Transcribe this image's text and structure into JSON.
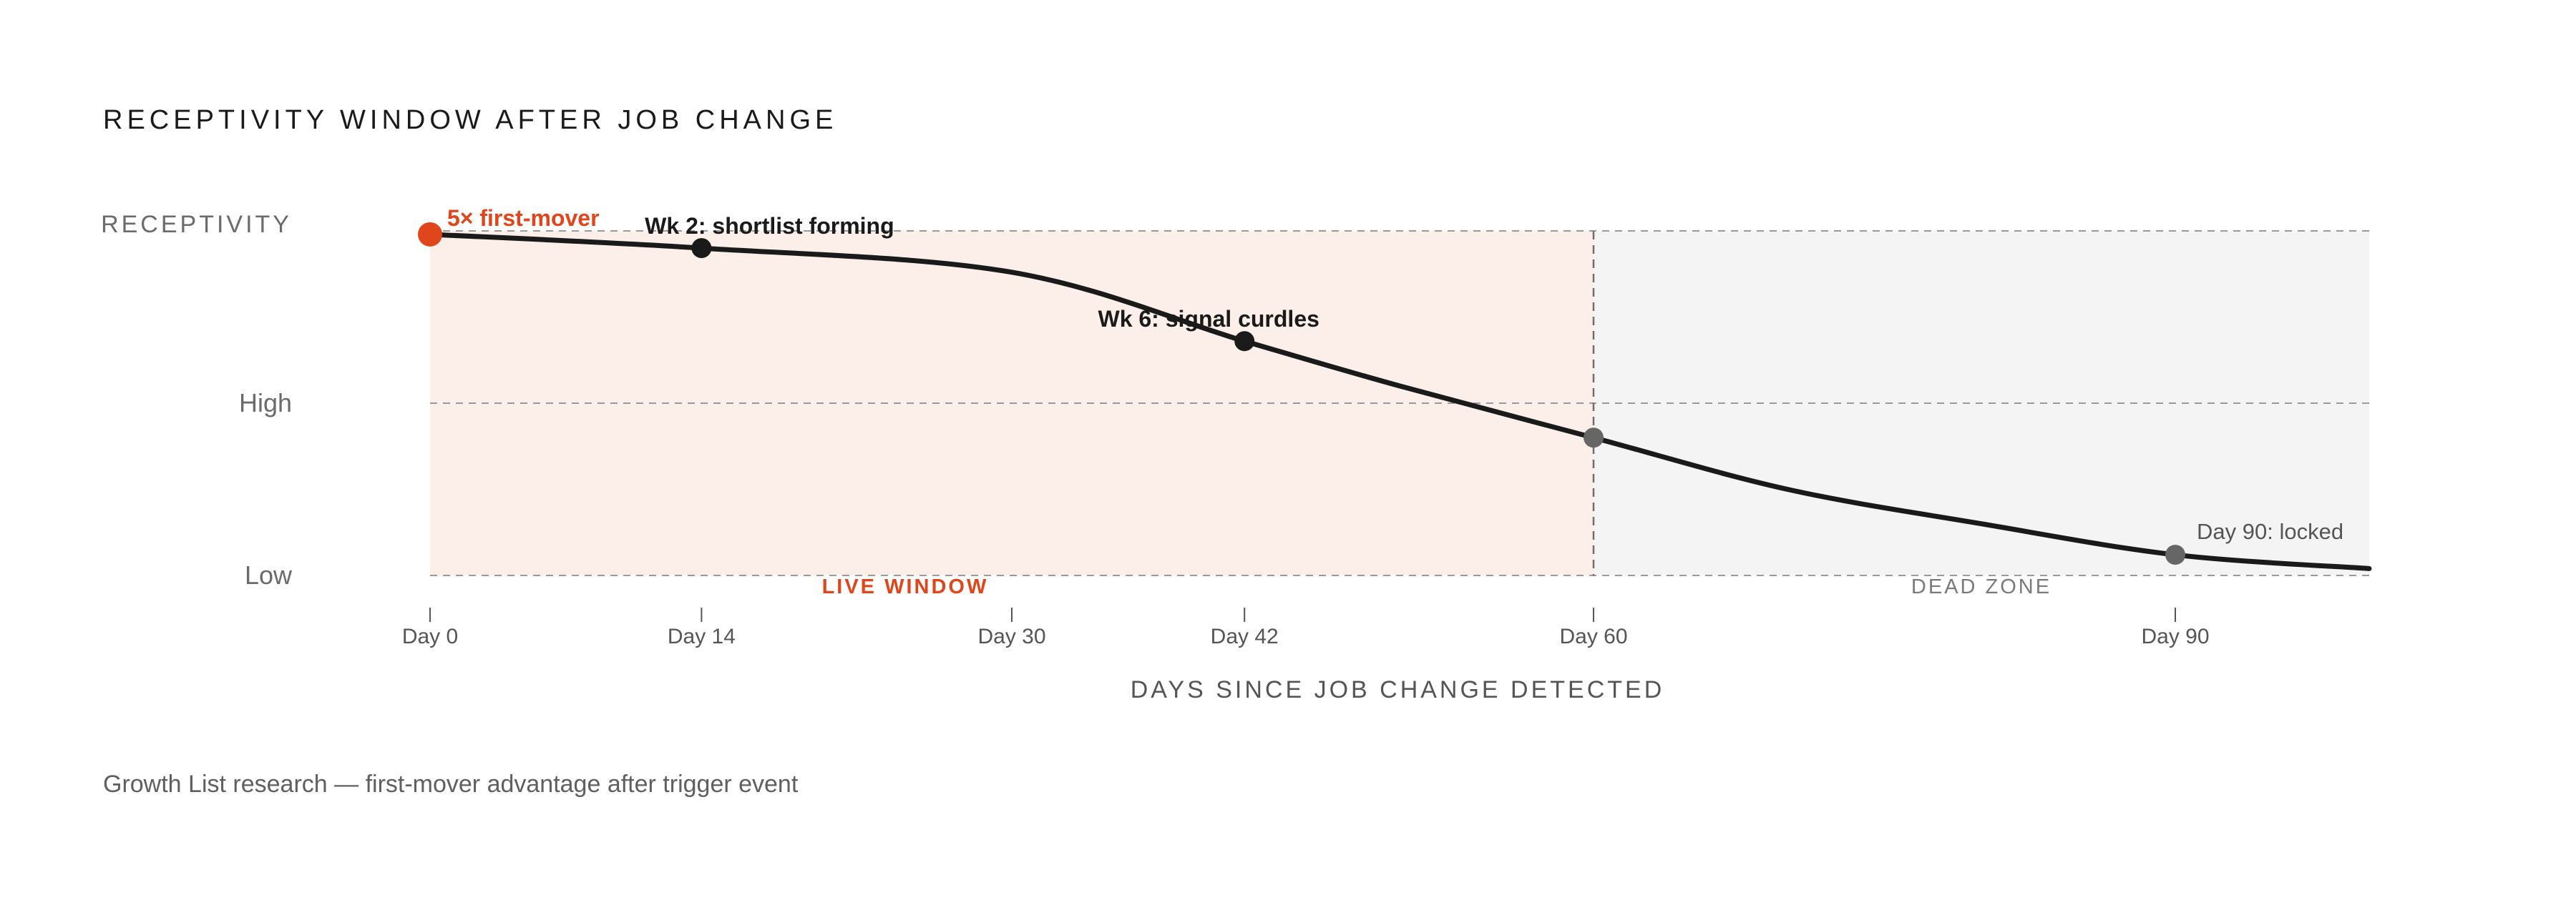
{
  "colors": {
    "accent": "#e0461b",
    "line": "#1a1a1a",
    "live_fill": "#fcefea",
    "dead_fill": "#f4f4f4",
    "grid": "#9a9a9a",
    "marker_dark": "#1a1a1a",
    "marker_grey": "#666666"
  },
  "chart_data": {
    "type": "line",
    "title": "RECEPTIVITY WINDOW AFTER JOB CHANGE",
    "ylabel": "RECEPTIVITY",
    "xlabel": "DAYS SINCE JOB CHANGE DETECTED",
    "xlim": [
      0,
      100
    ],
    "ylim": [
      0,
      100
    ],
    "x_ticks": [
      {
        "x": 0,
        "label": "Day 0"
      },
      {
        "x": 14,
        "label": "Day 14"
      },
      {
        "x": 30,
        "label": "Day 30"
      },
      {
        "x": 42,
        "label": "Day 42"
      },
      {
        "x": 60,
        "label": "Day 60"
      },
      {
        "x": 90,
        "label": "Day 90"
      }
    ],
    "y_ticks": [
      {
        "y": 0,
        "label": "Low"
      },
      {
        "y": 50,
        "label": "High"
      }
    ],
    "grid": "horizontal dashed",
    "series": [
      {
        "x": [
          0,
          14,
          30,
          42,
          50,
          60,
          70,
          80,
          90,
          100
        ],
        "y": [
          99,
          95,
          88,
          68,
          55,
          40,
          25,
          15,
          6,
          2
        ]
      }
    ],
    "regions": [
      {
        "label": "LIVE WINDOW",
        "x_start": 0,
        "x_end": 60
      },
      {
        "label": "DEAD ZONE",
        "x_start": 60,
        "x_end": 100
      }
    ],
    "markers": [
      {
        "x": 0,
        "y": 99,
        "label": "5× first-mover",
        "style": "accent"
      },
      {
        "x": 14,
        "y": 95,
        "label": "Wk 2: shortlist forming",
        "style": "dark"
      },
      {
        "x": 42,
        "y": 68,
        "label": "Wk 6: signal curdles",
        "style": "dark"
      },
      {
        "x": 60,
        "y": 40,
        "label": "",
        "style": "grey"
      },
      {
        "x": 90,
        "y": 6,
        "label": "Day 90: locked",
        "style": "grey"
      }
    ]
  },
  "footer": "Growth List research — first-mover advantage after trigger event"
}
